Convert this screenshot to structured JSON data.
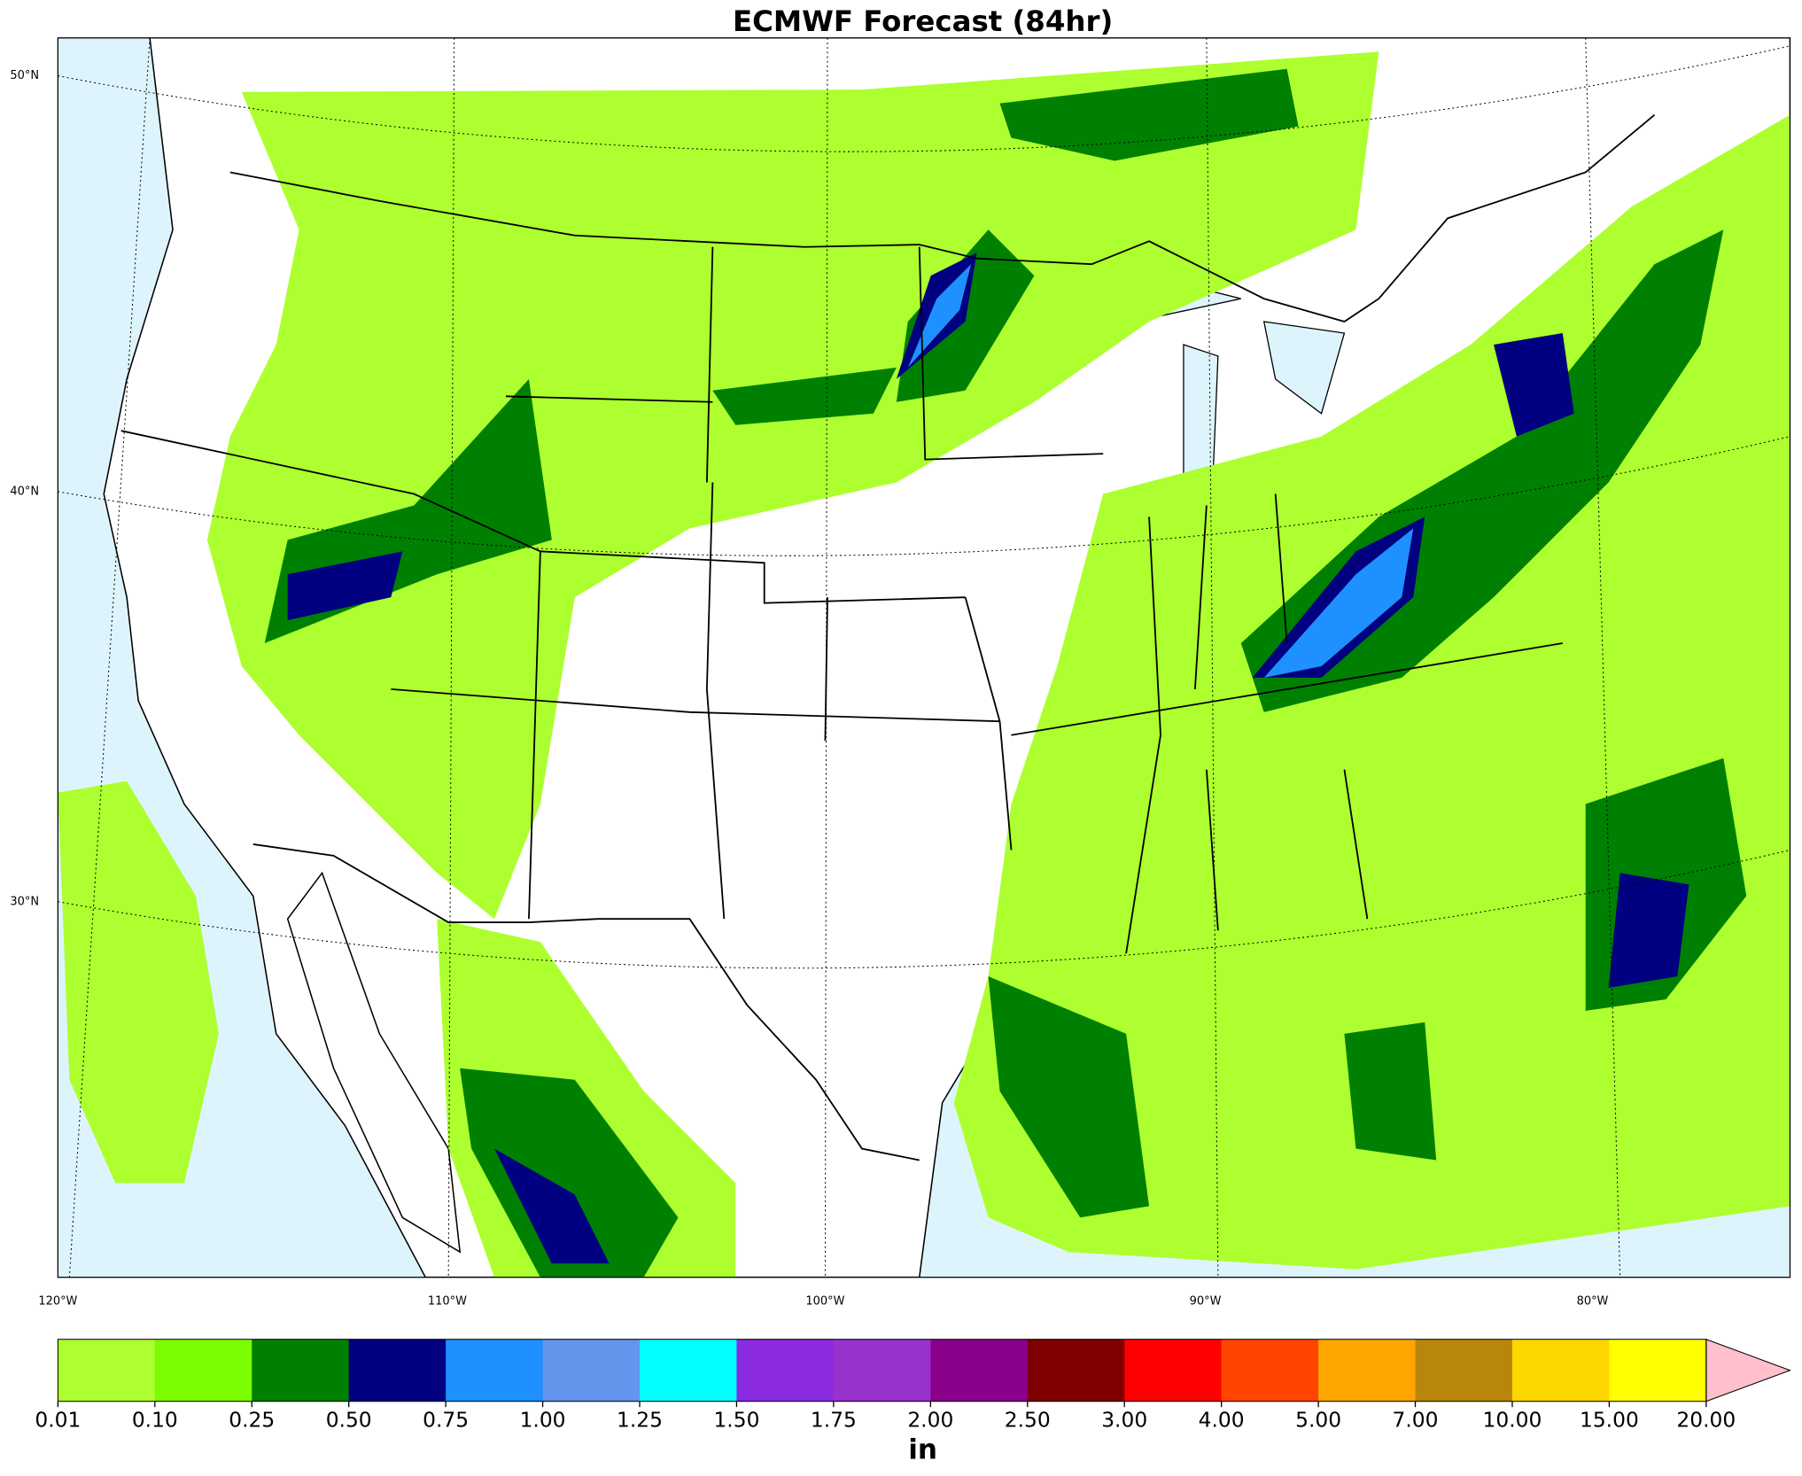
{
  "title": "ECMWF Forecast (84hr)",
  "map": {
    "lat_labels": [
      "50°N",
      "40°N",
      "30°N"
    ],
    "lon_labels": [
      "120°W",
      "110°W",
      "100°W",
      "90°W",
      "80°W"
    ]
  },
  "colorbar": {
    "levels": [
      {
        "value": 0.01,
        "label": "0.01"
      },
      {
        "value": 0.1,
        "label": "0.10"
      },
      {
        "value": 0.25,
        "label": "0.25"
      },
      {
        "value": 0.5,
        "label": "0.50"
      },
      {
        "value": 0.75,
        "label": "0.75"
      },
      {
        "value": 1,
        "label": "1.00"
      },
      {
        "value": 1.25,
        "label": "1.25"
      },
      {
        "value": 1.5,
        "label": "1.50"
      },
      {
        "value": 1.75,
        "label": "1.75"
      },
      {
        "value": 2,
        "label": "2.00"
      },
      {
        "value": 2.5,
        "label": "2.50"
      },
      {
        "value": 3,
        "label": "3.00"
      },
      {
        "value": 4,
        "label": "4.00"
      },
      {
        "value": 5,
        "label": "5.00"
      },
      {
        "value": 7,
        "label": "7.00"
      },
      {
        "value": 10,
        "label": "10.00"
      },
      {
        "value": 15,
        "label": "15.00"
      },
      {
        "value": 20,
        "label": "20.00"
      }
    ],
    "colors": [
      "#adff2f",
      "#7cfc00",
      "#008000",
      "#000080",
      "#1e90ff",
      "#6495ed",
      "#00ffff",
      "#8a2be2",
      "#9932cc",
      "#8b008b",
      "#800000",
      "#ff0000",
      "#ff4500",
      "#ffa500",
      "#b8860b",
      "#ffd700",
      "#ffff00"
    ],
    "extend_color": "#ffc0cb",
    "units": "in"
  }
}
